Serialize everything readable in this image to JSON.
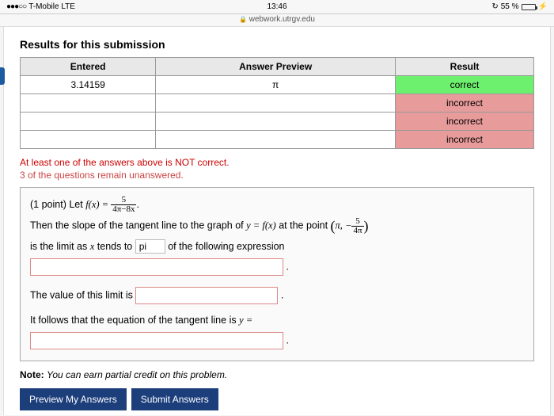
{
  "status": {
    "carrier": "T-Mobile  LTE",
    "time": "13:46",
    "battery_pct": "55 %",
    "url": "webwork.utrgv.edu"
  },
  "heading": "Results for this submission",
  "table": {
    "headers": [
      "Entered",
      "Answer Preview",
      "Result"
    ],
    "rows": [
      {
        "entered": "3.14159",
        "preview": "π",
        "result": "correct",
        "result_class": "cell-correct"
      },
      {
        "entered": "",
        "preview": "",
        "result": "incorrect",
        "result_class": "cell-incorrect"
      },
      {
        "entered": "",
        "preview": "",
        "result": "incorrect",
        "result_class": "cell-incorrect"
      },
      {
        "entered": "",
        "preview": "",
        "result": "incorrect",
        "result_class": "cell-incorrect"
      }
    ]
  },
  "warnings": {
    "line1": "At least one of the answers above is NOT correct.",
    "line2": "3 of the questions remain unanswered."
  },
  "problem": {
    "points": "(1 point) Let ",
    "func_lhs": "f(x) = ",
    "frac1_num": "5",
    "frac1_den": "4π−8x",
    "line2a": "Then the slope of the tangent line to the graph of ",
    "eq1": "y = f(x)",
    "line2b": " at the point ",
    "pt_a": "π, −",
    "pt_frac_num": "5",
    "pt_frac_den": "4π",
    "line3a": "is the limit as ",
    "xvar": "x",
    "line3b": " tends to ",
    "input_val": "pi",
    "line3c": " of the following expression",
    "line4": "The value of this limit is ",
    "line5a": "It follows that the equation of the tangent line is ",
    "eq2": "y ="
  },
  "note_label": "Note:",
  "note_text": " You can earn partial credit on this problem.",
  "buttons": {
    "preview": "Preview My Answers",
    "submit": "Submit Answers"
  }
}
